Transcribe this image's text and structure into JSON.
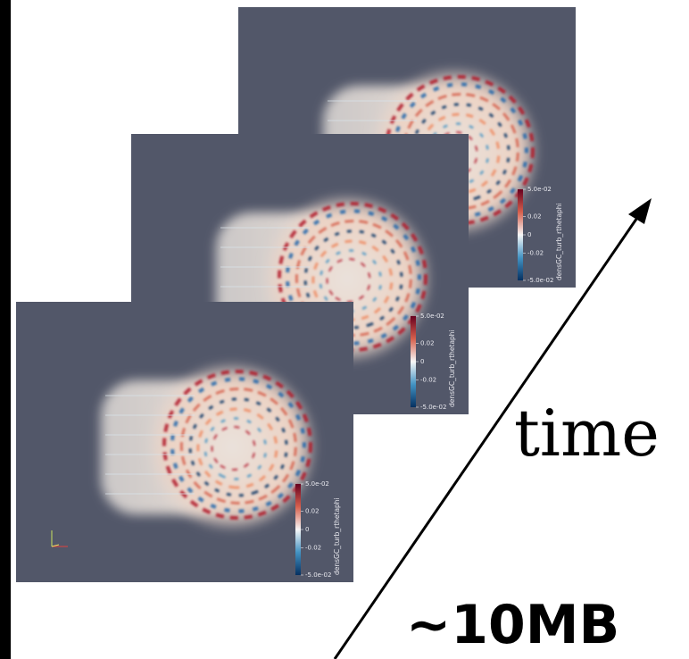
{
  "frames": [
    {
      "colorbar": {
        "title": "densGC_turb_rthetaphi",
        "ticks": [
          "5.0e-02",
          "0.02",
          "0",
          "-0.02",
          "-5.0e-02"
        ]
      }
    },
    {
      "colorbar": {
        "title": "densGC_turb_rthetaphi",
        "ticks": [
          "5.0e-02",
          "0.02",
          "0",
          "-0.02",
          "-5.0e-02"
        ]
      }
    },
    {
      "colorbar": {
        "title": "densGC_turb_rthetaphi",
        "ticks": [
          "5.0e-02",
          "0.02",
          "0",
          "-0.02",
          "-5.0e-02"
        ]
      }
    }
  ],
  "arrow_label": "time",
  "size_label": "~10MB"
}
